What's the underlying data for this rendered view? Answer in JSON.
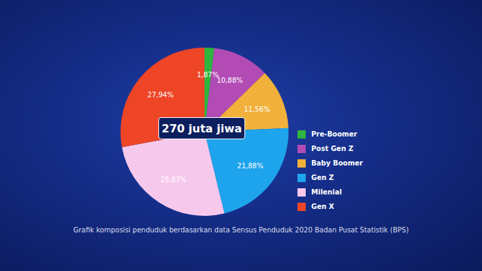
{
  "chart_data": {
    "type": "pie",
    "title": "Grafik komposisi penduduk berdasarkan data Sensus Penduduk 2020 Badan Pusat Statistik (BPS)",
    "annotations": [
      "270 juta jiwa"
    ],
    "categories": [
      "Pre-Boomer",
      "Post Gen Z",
      "Baby Boomer",
      "Gen Z",
      "Milenial",
      "Gen X"
    ],
    "values": [
      1.87,
      10.88,
      11.56,
      21.88,
      25.87,
      27.94
    ],
    "value_labels": [
      "1,87%",
      "10,88%",
      "11,56%",
      "21,88%",
      "25,87%",
      "27,94%"
    ],
    "colors": [
      "#2eb53e",
      "#b34bb5",
      "#f1b13a",
      "#1ea4ec",
      "#f6c8ec",
      "#ee4527"
    ],
    "data_labels": true,
    "legend": "right"
  }
}
